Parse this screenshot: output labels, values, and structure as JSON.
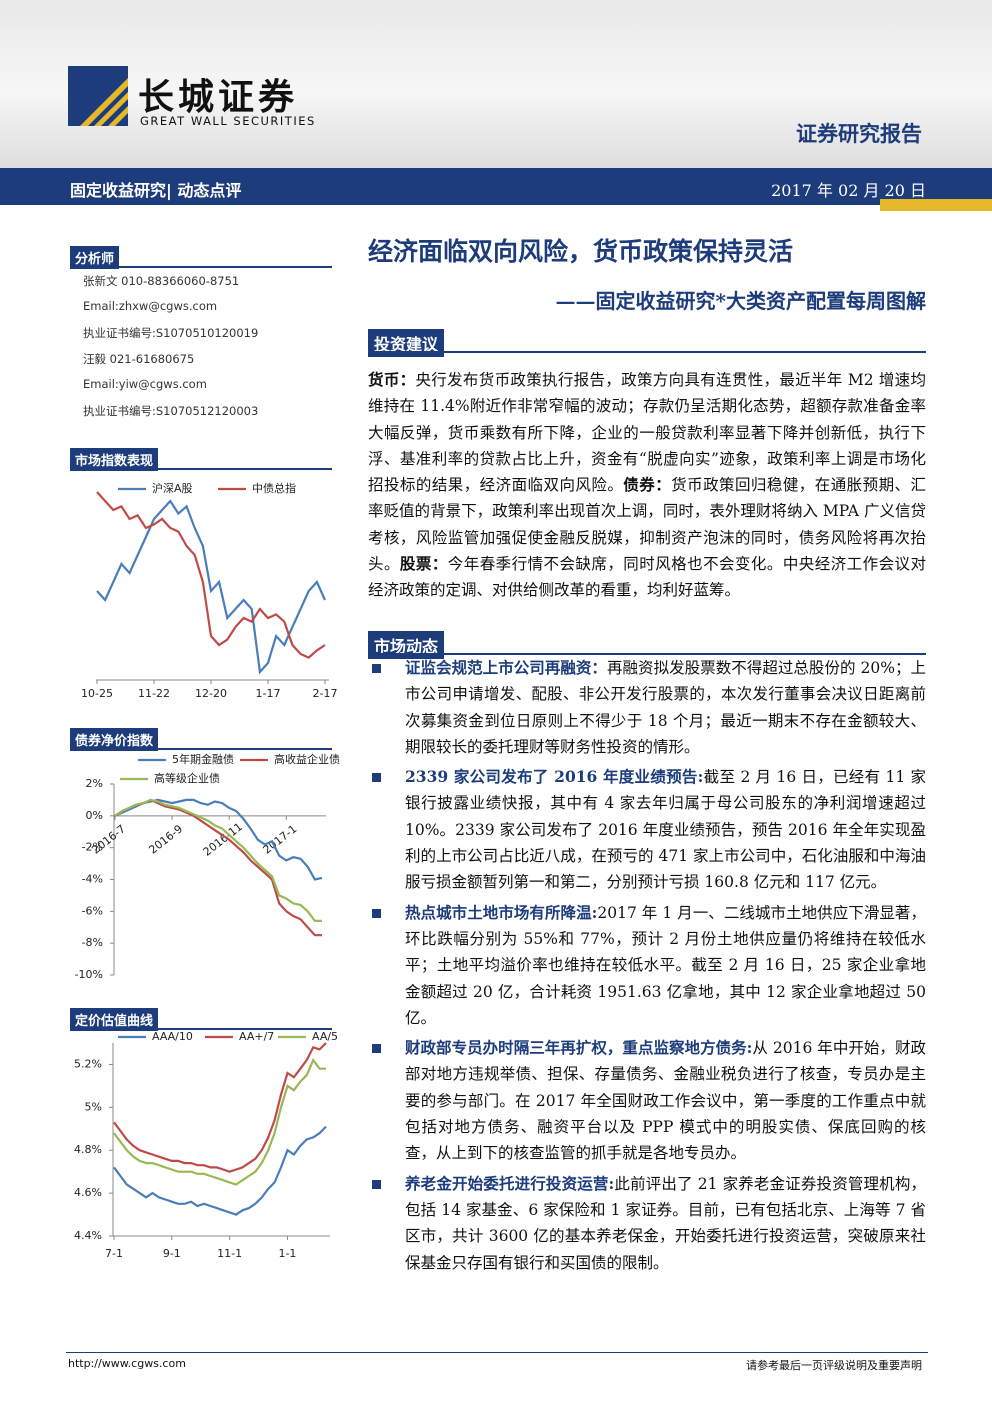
{
  "header": {
    "logo_cn": "长城证券",
    "logo_en": "GREAT WALL SECURITIES",
    "report_type": "证券研究报告",
    "category": "固定收益研究| 动态点评",
    "date": "2017 年 02 月 20 日"
  },
  "sidebar": {
    "analyst_heading": "分析师",
    "analysts": [
      "张新文 010-88366060-8751",
      "Email:zhxw@cgws.com",
      "执业证书编号:S1070510120019",
      "汪毅 021-61680675",
      "Email:yiw@cgws.com",
      "执业证书编号:S1070512120003"
    ]
  },
  "chart_data": [
    {
      "type": "line",
      "title": "市场指数表现",
      "categories": [
        "10-25",
        null,
        null,
        null,
        null,
        null,
        null,
        "11-22",
        null,
        null,
        null,
        null,
        null,
        null,
        "12-20",
        null,
        null,
        null,
        null,
        null,
        null,
        "1-17",
        null,
        null,
        null,
        null,
        null,
        null,
        "2-17"
      ],
      "series": [
        {
          "name": "沪深A股",
          "color": "#4a7ebb",
          "values": [
            45,
            40,
            50,
            60,
            55,
            65,
            75,
            85,
            90,
            95,
            88,
            92,
            80,
            70,
            45,
            50,
            30,
            35,
            40,
            35,
            0,
            5,
            20,
            15,
            25,
            35,
            45,
            50,
            40
          ]
        },
        {
          "name": "中债总指",
          "color": "#be4b48",
          "values": [
            100,
            95,
            90,
            92,
            85,
            87,
            80,
            82,
            85,
            80,
            78,
            70,
            65,
            50,
            20,
            15,
            18,
            25,
            30,
            28,
            35,
            30,
            32,
            28,
            15,
            10,
            8,
            12,
            15
          ]
        }
      ]
    },
    {
      "type": "line",
      "title": "债券净价指数",
      "categories": [
        "2016-7",
        null,
        null,
        null,
        null,
        null,
        null,
        null,
        "2016-9",
        null,
        null,
        null,
        null,
        null,
        null,
        null,
        "2016-11",
        null,
        null,
        null,
        null,
        null,
        null,
        null,
        "2017-1",
        null,
        null,
        null,
        null,
        null
      ],
      "ylim": [
        -10,
        2
      ],
      "yticks": [
        {
          "value": 2,
          "label": "2%"
        },
        {
          "value": 0,
          "label": "0%"
        },
        {
          "value": -2,
          "label": "-2%"
        },
        {
          "value": -4,
          "label": "-4%"
        },
        {
          "value": -6,
          "label": "-6%"
        },
        {
          "value": -8,
          "label": "-8%"
        },
        {
          "value": -10,
          "label": "-10%"
        }
      ],
      "series": [
        {
          "name": "5年期金融债",
          "color": "#4a7ebb",
          "values": [
            0,
            0.2,
            0.4,
            0.6,
            0.8,
            0.9,
            1.0,
            0.9,
            0.8,
            0.9,
            1.0,
            1.0,
            0.8,
            0.7,
            0.9,
            0.8,
            0.5,
            0.3,
            -0.2,
            -0.8,
            -1.5,
            -1.8,
            -1.6,
            -2.5,
            -2.8,
            -2.6,
            -2.7,
            -3.2,
            -4.0,
            -3.9
          ]
        },
        {
          "name": "高收益企业债",
          "color": "#be4b48",
          "values": [
            0,
            0.3,
            0.5,
            0.7,
            0.8,
            1.0,
            0.8,
            0.6,
            0.5,
            0.4,
            0.2,
            0.0,
            -0.3,
            -0.6,
            -0.9,
            -1.2,
            -1.5,
            -1.9,
            -2.3,
            -2.8,
            -3.2,
            -3.6,
            -4.0,
            -5.5,
            -6.0,
            -6.3,
            -6.5,
            -7.0,
            -7.5,
            -7.5
          ]
        },
        {
          "name": "高等级企业债",
          "color": "#98b954",
          "values": [
            0,
            0.3,
            0.5,
            0.7,
            0.8,
            1.0,
            0.9,
            0.7,
            0.6,
            0.5,
            0.3,
            0.1,
            -0.1,
            -0.3,
            -0.6,
            -0.8,
            -1.2,
            -1.6,
            -2.0,
            -2.5,
            -3.0,
            -3.4,
            -3.8,
            -5.0,
            -5.2,
            -5.5,
            -5.6,
            -6.0,
            -6.6,
            -6.6
          ]
        }
      ]
    },
    {
      "type": "line",
      "title": "定价估值曲线",
      "categories": [
        "7-1",
        null,
        null,
        null,
        null,
        null,
        null,
        null,
        null,
        "9-1",
        null,
        null,
        null,
        null,
        null,
        null,
        null,
        null,
        "11-1",
        null,
        null,
        null,
        null,
        null,
        null,
        null,
        null,
        "1-1",
        null,
        null,
        null,
        null,
        null,
        null
      ],
      "ylim": [
        4.4,
        5.3
      ],
      "yticks": [
        {
          "value": 4.4,
          "label": "4.4%"
        },
        {
          "value": 4.6,
          "label": "4.6%"
        },
        {
          "value": 4.8,
          "label": "4.8%"
        },
        {
          "value": 5,
          "label": "5%"
        },
        {
          "value": 5.2,
          "label": "5.2%"
        }
      ],
      "series": [
        {
          "name": "AAA/10",
          "color": "#4a7ebb",
          "values": [
            4.72,
            4.68,
            4.64,
            4.62,
            4.6,
            4.58,
            4.6,
            4.58,
            4.57,
            4.56,
            4.55,
            4.55,
            4.56,
            4.54,
            4.55,
            4.54,
            4.53,
            4.52,
            4.51,
            4.5,
            4.52,
            4.53,
            4.55,
            4.58,
            4.62,
            4.65,
            4.72,
            4.8,
            4.78,
            4.82,
            4.85,
            4.86,
            4.88,
            4.91
          ]
        },
        {
          "name": "AA+/7",
          "color": "#be4b48",
          "values": [
            4.93,
            4.89,
            4.85,
            4.82,
            4.8,
            4.79,
            4.78,
            4.77,
            4.76,
            4.75,
            4.75,
            4.74,
            4.74,
            4.73,
            4.73,
            4.72,
            4.72,
            4.71,
            4.7,
            4.71,
            4.72,
            4.74,
            4.76,
            4.8,
            4.86,
            4.94,
            5.06,
            5.16,
            5.14,
            5.18,
            5.22,
            5.28,
            5.27,
            5.3
          ]
        },
        {
          "name": "AA/5",
          "color": "#98b954",
          "values": [
            4.88,
            4.84,
            4.8,
            4.77,
            4.75,
            4.74,
            4.74,
            4.73,
            4.72,
            4.71,
            4.7,
            4.7,
            4.7,
            4.69,
            4.69,
            4.68,
            4.67,
            4.66,
            4.65,
            4.64,
            4.66,
            4.68,
            4.7,
            4.74,
            4.8,
            4.88,
            5.0,
            5.1,
            5.08,
            5.12,
            5.15,
            5.22,
            5.18,
            5.18
          ]
        }
      ]
    }
  ],
  "title": "经济面临双向风险，货币政策保持灵活",
  "subtitle": "——固定收益研究*大类资产配置每周图解",
  "sections": [
    {
      "heading": "投资建议",
      "runs": [
        {
          "text": "货币：",
          "bold": true
        },
        {
          "text": "央行发布货币政策执行报告，政策方向具有连贯性，最近半年 M2 增速均维持在 11.4%附近作非常窄幅的波动；存款仍呈活期化态势，超额存款准备金率大幅反弹，货币乘数有所下降，企业的一般贷款利率显著下降并创新低，执行下浮、基准利率的贷款占比上升，资金有“脱虚向实”迹象，政策利率上调是市场化招投标的结果，经济面临双向风险。",
          "bold": false
        },
        {
          "text": "债券：",
          "bold": true
        },
        {
          "text": "货币政策回归稳健，在通胀预期、汇率贬值的背景下，政策利率出现首次上调，同时，表外理财将纳入 MPA 广义信贷考核，风险监管加强促使金融反脱媒，抑制资产泡沫的同时，债务风险将再次抬头。",
          "bold": false
        },
        {
          "text": "股票：",
          "bold": true
        },
        {
          "text": "今年春季行情不会缺席，同时风格也不会变化。中央经济工作会议对经济政策的定调、对供给侧改革的看重，均利好蓝筹。",
          "bold": false
        }
      ]
    },
    {
      "heading": "市场动态",
      "items": [
        {
          "title": "证监会规范上市公司再融资：",
          "text": "再融资拟发股票数不得超过总股份的 20%；上市公司申请增发、配股、非公开发行股票的，本次发行董事会决议日距离前次募集资金到位日原则上不得少于 18 个月；最近一期末不存在金额较大、期限较长的委托理财等财务性投资的情形。"
        },
        {
          "title": "2339 家公司发布了 2016 年度业绩预告:",
          "text": "截至 2 月 16 日，已经有 11 家银行披露业绩快报，其中有 4 家去年归属于母公司股东的净利润增速超过 10%。2339 家公司发布了 2016 年度业绩预告，预告 2016 年全年实现盈利的上市公司占比近八成，在预亏的 471 家上市公司中，石化油服和中海油服亏损金额暂列第一和第二，分别预计亏损 160.8 亿元和 117 亿元。"
        },
        {
          "title": "热点城市土地市场有所降温:",
          "text": "2017 年 1 月一、二线城市土地供应下滑显著，环比跌幅分别为 55%和 77%，预计 2 月份土地供应量仍将维持在较低水平；土地平均溢价率也维持在较低水平。截至 2 月 16 日，25 家企业拿地金额超过 20 亿，合计耗资 1951.63 亿拿地，其中 12 家企业拿地超过 50 亿。"
        },
        {
          "title": "财政部专员办时隔三年再扩权，重点监察地方债务:",
          "text": "从 2016 年中开始，财政部对地方违规举债、担保、存量债务、金融业税负进行了核查，专员办是主要的参与部门。在 2017 年全国财政工作会议中，第一季度的工作重点中就包括对地方债务、融资平台以及 PPP 模式中的明股实债、保底回购的核查，从上到下的核查监管的抓手就是各地专员办。"
        },
        {
          "title": "养老金开始委托进行投资运营:",
          "text": "此前评出了 21 家养老金证券投资管理机构，包括 14 家基金、6 家保险和 1 家证券。目前，已有包括北京、上海等 7 省区市，共计 3600 亿的基本养老保金，开始委托进行投资运营，突破原来社保基金只存国有银行和买国债的限制。"
        }
      ]
    }
  ],
  "footer": {
    "url": "http://www.cgws.com",
    "note": "请参考最后一页评级说明及重要声明"
  }
}
